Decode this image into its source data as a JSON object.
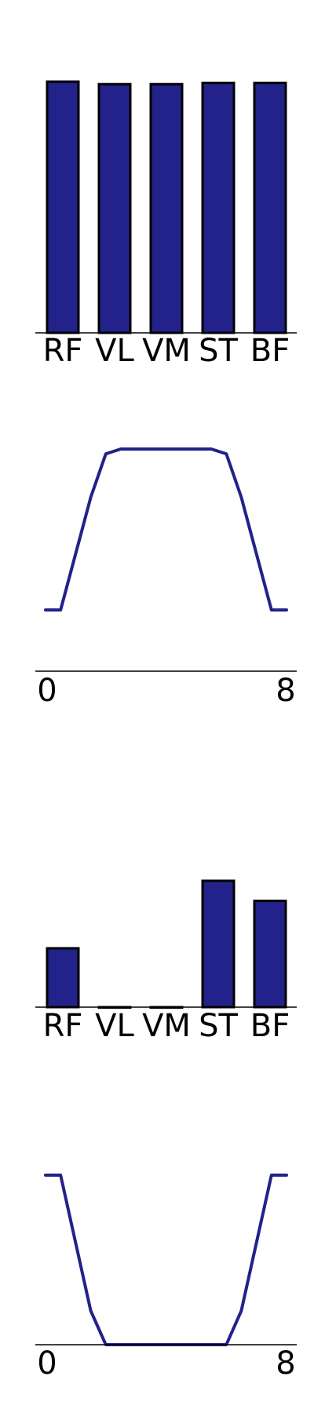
{
  "colors": {
    "bar_fill": "#22228a",
    "line": "#22228a",
    "edge": "#000000"
  },
  "chart_data": [
    {
      "type": "bar",
      "categories": [
        "RF",
        "VL",
        "VM",
        "ST",
        "BF"
      ],
      "values": [
        1.0,
        0.99,
        0.99,
        0.995,
        0.995
      ],
      "ylim": [
        0,
        1.0
      ]
    },
    {
      "type": "line",
      "x_ticks": [
        "0",
        "8"
      ],
      "xlim": [
        0,
        8
      ],
      "ylim": [
        0,
        1.0
      ],
      "x": [
        0,
        0.5,
        1,
        1.5,
        2,
        2.5,
        3,
        4,
        5,
        5.5,
        6,
        6.5,
        7,
        7.5,
        8
      ],
      "y": [
        0,
        0,
        0.35,
        0.7,
        0.97,
        1.0,
        1.0,
        1.0,
        1.0,
        1.0,
        0.97,
        0.7,
        0.35,
        0,
        0
      ]
    },
    {
      "type": "bar",
      "categories": [
        "RF",
        "VL",
        "VM",
        "ST",
        "BF"
      ],
      "values": [
        0.41,
        0.0,
        0.0,
        0.88,
        0.74
      ],
      "ylim": [
        0,
        1.0
      ]
    },
    {
      "type": "line",
      "x_ticks": [
        "0",
        "8"
      ],
      "xlim": [
        0,
        8
      ],
      "ylim": [
        0,
        1.0
      ],
      "x": [
        0,
        0.5,
        1,
        1.5,
        2,
        2.5,
        3,
        4,
        5,
        5.5,
        6,
        6.5,
        7,
        7.5,
        8
      ],
      "y": [
        1.0,
        1.0,
        0.6,
        0.2,
        0.0,
        0.0,
        0.0,
        0.0,
        0.0,
        0.0,
        0.0,
        0.2,
        0.6,
        1.0,
        1.0
      ]
    }
  ]
}
